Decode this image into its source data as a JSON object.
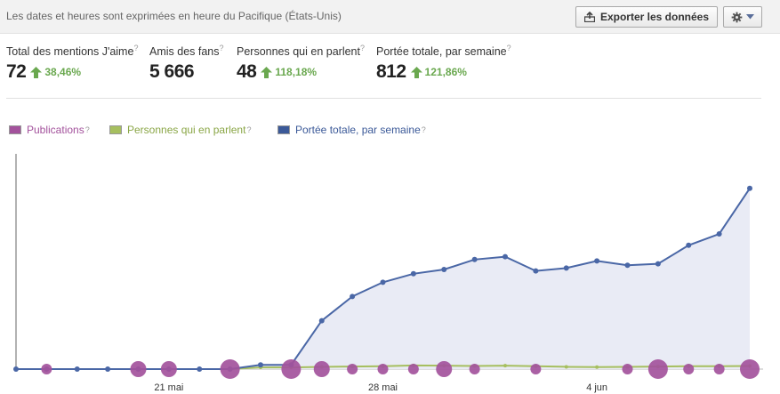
{
  "header": {
    "timezone_note": "Les dates et heures sont exprimées en heure du Pacifique (États-Unis)",
    "export_label": "Exporter les données",
    "export_icon": "upload-icon",
    "settings_icon": "gear-icon"
  },
  "metrics": [
    {
      "label": "Total des mentions J'aime",
      "value": "72",
      "change": "38,46%"
    },
    {
      "label": "Amis des fans",
      "value": "5 666",
      "change": ""
    },
    {
      "label": "Personnes qui en parlent",
      "value": "48",
      "change": "118,18%"
    },
    {
      "label": "Portée totale, par semaine",
      "value": "812",
      "change": "121,86%"
    }
  ],
  "help_mark": "?",
  "legend": [
    {
      "label": "Publications",
      "color": "#a3529c"
    },
    {
      "label": "Personnes qui en parlent",
      "color": "#a6bf5f"
    },
    {
      "label": "Portée totale, par semaine",
      "color": "#3b5998"
    }
  ],
  "chart_data": {
    "type": "line",
    "x_tick_labels": [
      "21 mai",
      "28 mai",
      "4 jun"
    ],
    "x_tick_index": [
      5,
      12,
      19
    ],
    "series": [
      {
        "name": "Portée totale, par semaine",
        "color": "#4a67a6",
        "values": [
          0,
          0,
          0,
          0,
          0,
          0,
          0,
          0,
          1.5,
          1.5,
          17,
          25.5,
          30.5,
          33.5,
          35,
          38.5,
          39.5,
          34.5,
          35.5,
          38,
          36.5,
          37,
          43.5,
          47.5,
          63.5
        ]
      },
      {
        "name": "Personnes qui en parlent",
        "color": "#a6bf5f",
        "values": [
          0,
          0,
          0,
          0,
          0,
          0,
          0,
          0,
          0.6,
          0.6,
          0.8,
          0.9,
          1.0,
          1.3,
          1.2,
          1.1,
          1.2,
          1.0,
          0.8,
          0.7,
          0.8,
          0.9,
          1.0,
          1.0,
          1.1
        ]
      },
      {
        "name": "Publications",
        "color": "#a3529c",
        "marker_size": [
          0,
          1,
          0,
          0,
          2,
          2,
          0,
          3,
          0,
          3,
          2,
          1,
          1,
          1,
          2,
          1,
          0,
          1,
          0,
          0,
          1,
          3,
          1,
          1,
          3
        ]
      }
    ]
  }
}
